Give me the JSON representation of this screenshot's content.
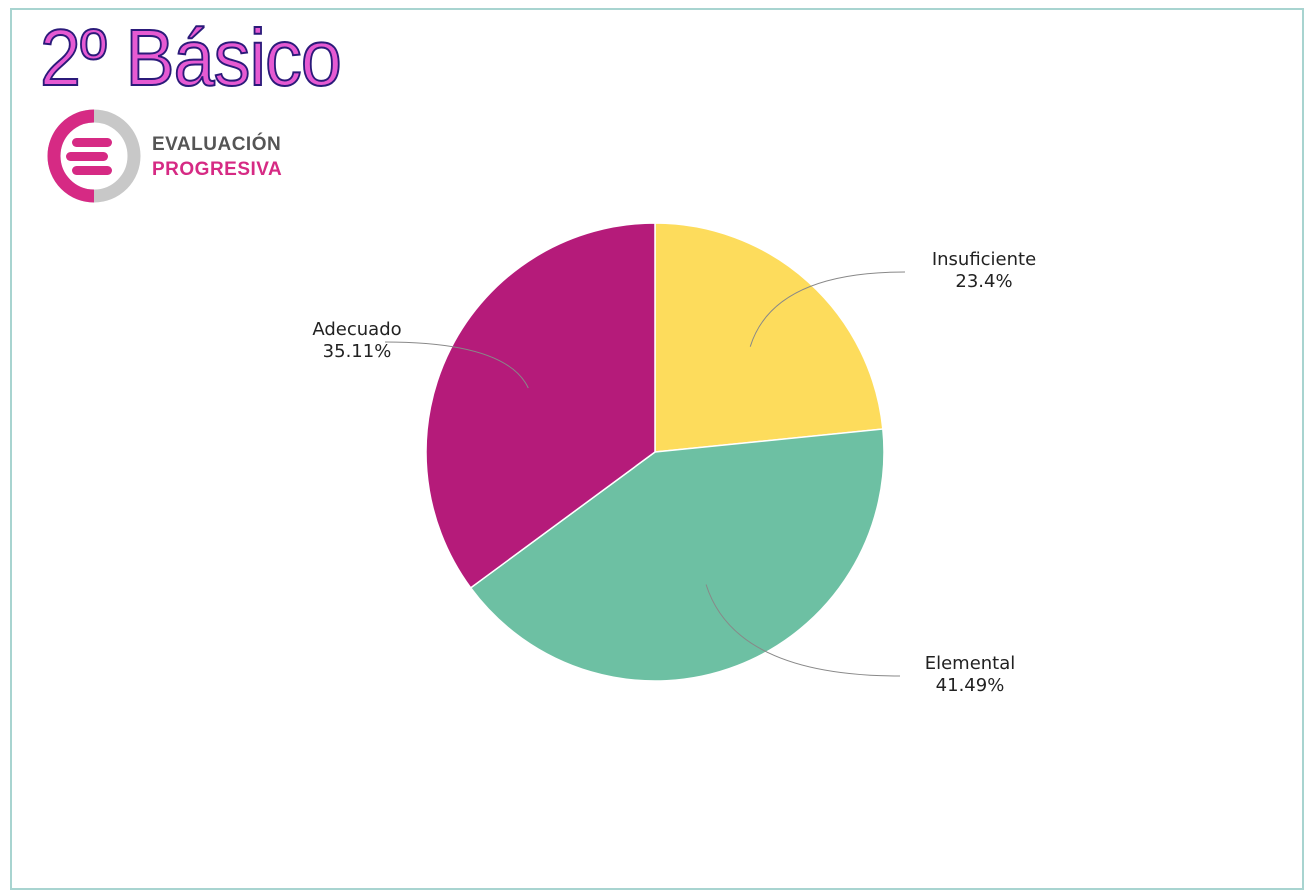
{
  "header": {
    "title": "2º Básico",
    "logo_line1": "EVALUACIÓN",
    "logo_line2": "PROGRESIVA"
  },
  "colors": {
    "insuficiente": "#fddc5c",
    "elemental": "#6dc0a3",
    "adecuado": "#b51b7a",
    "title_fill": "#e65ad2",
    "brand_pink": "#d62a84",
    "frame": "#a8d4d0"
  },
  "chart_data": {
    "type": "pie",
    "categories": [
      "Insuficiente",
      "Elemental",
      "Adecuado"
    ],
    "values": [
      23.4,
      41.49,
      35.11
    ],
    "labels": [
      "23.4%",
      "41.49%",
      "35.11%"
    ],
    "start_angle": "12 o'clock",
    "direction": "clockwise"
  }
}
